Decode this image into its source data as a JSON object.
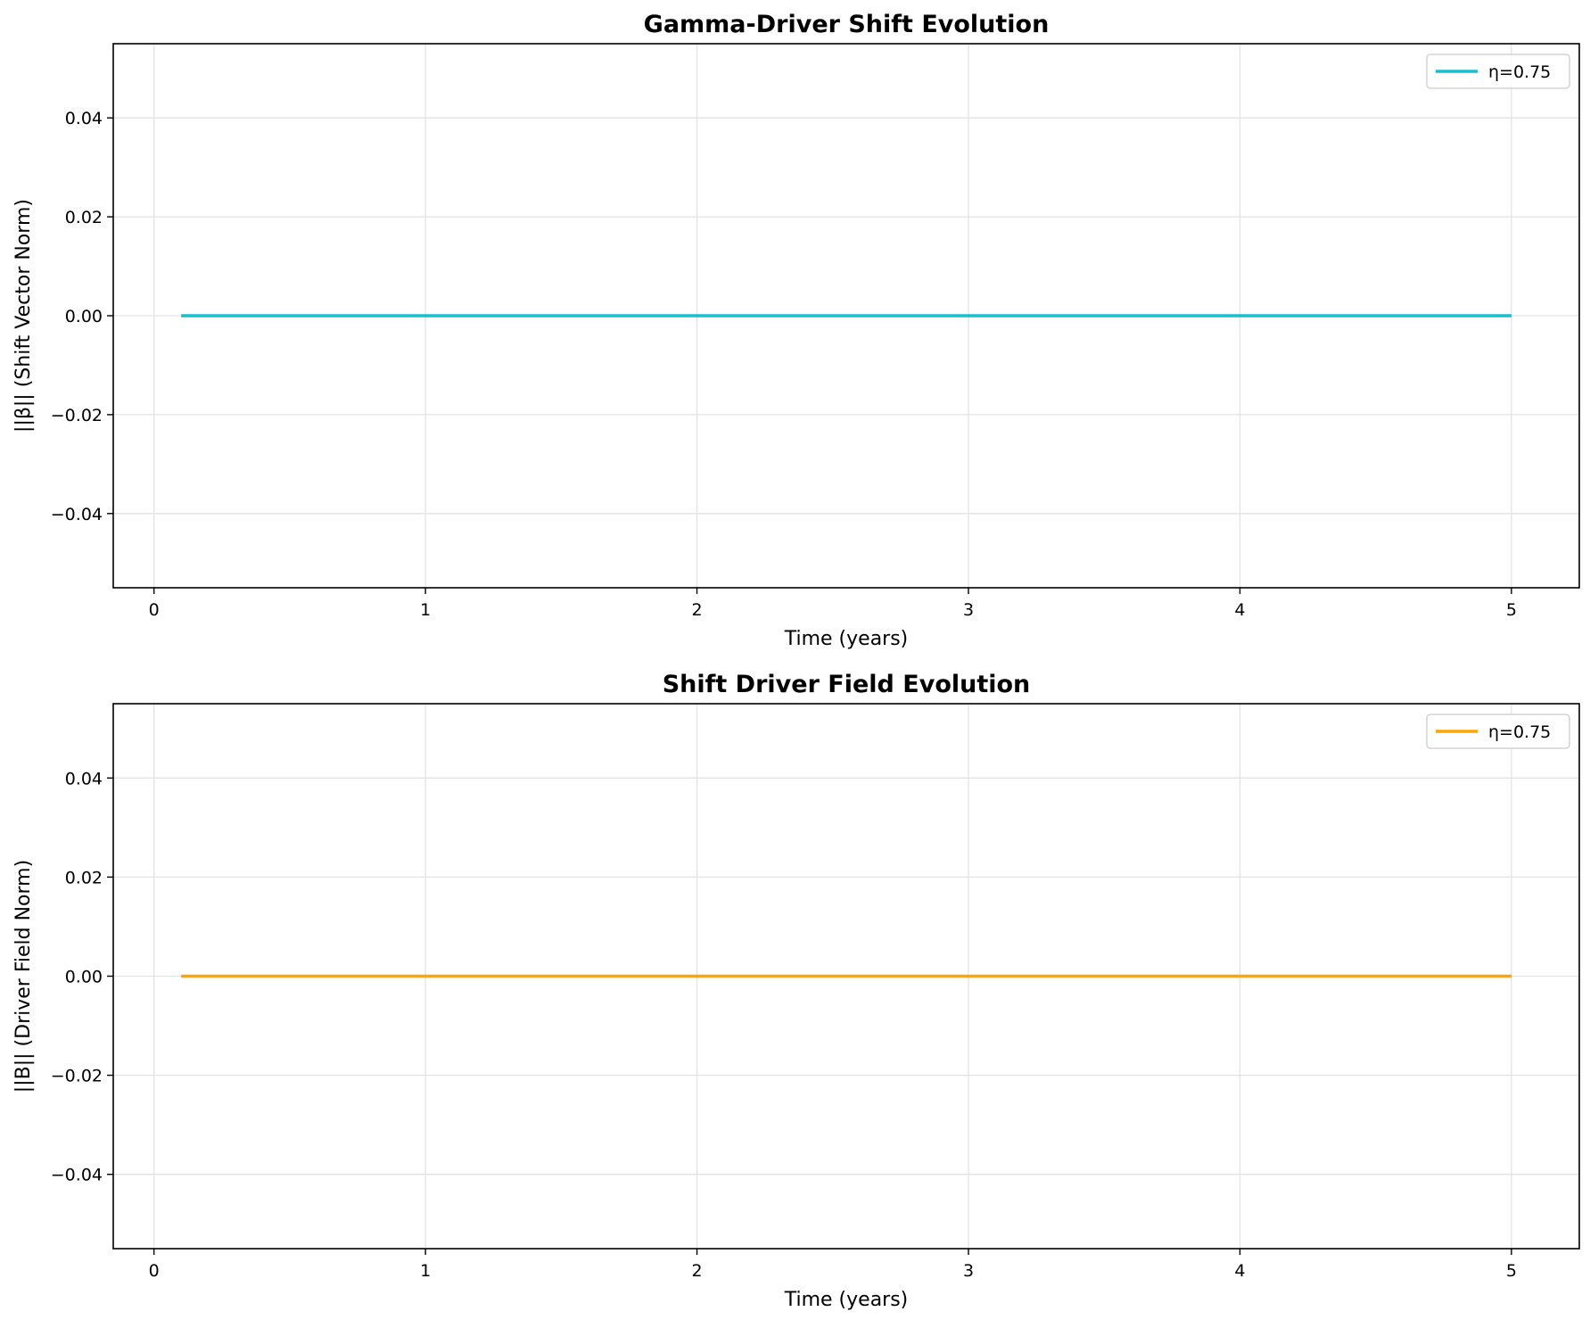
{
  "chart_data": [
    {
      "type": "line",
      "title": "Gamma-Driver Shift Evolution",
      "xlabel": "Time (years)",
      "ylabel": "||β|| (Shift Vector Norm)",
      "xlim": [
        -0.15,
        5.25
      ],
      "ylim": [
        -0.055,
        0.055
      ],
      "xticks": [
        0,
        1,
        2,
        3,
        4,
        5
      ],
      "xtick_labels": [
        "0",
        "1",
        "2",
        "3",
        "4",
        "5"
      ],
      "yticks": [
        0.04,
        0.02,
        0.0,
        -0.02,
        -0.04
      ],
      "ytick_labels": [
        "0.04",
        "0.02",
        "0.00",
        "−0.02",
        "−0.04"
      ],
      "grid": true,
      "legend_position": "top-right",
      "series": [
        {
          "name": "η=0.75",
          "color": "#17becf",
          "x": [
            0.1,
            5.0
          ],
          "y": [
            0.0,
            0.0
          ]
        }
      ]
    },
    {
      "type": "line",
      "title": "Shift Driver Field Evolution",
      "xlabel": "Time (years)",
      "ylabel": "||B|| (Driver Field Norm)",
      "xlim": [
        -0.15,
        5.25
      ],
      "ylim": [
        -0.055,
        0.055
      ],
      "xticks": [
        0,
        1,
        2,
        3,
        4,
        5
      ],
      "xtick_labels": [
        "0",
        "1",
        "2",
        "3",
        "4",
        "5"
      ],
      "yticks": [
        0.04,
        0.02,
        0.0,
        -0.02,
        -0.04
      ],
      "ytick_labels": [
        "0.04",
        "0.02",
        "0.00",
        "−0.02",
        "−0.04"
      ],
      "grid": true,
      "legend_position": "top-right",
      "series": [
        {
          "name": "η=0.75",
          "color": "#ffa500",
          "x": [
            0.1,
            5.0
          ],
          "y": [
            0.0,
            0.0
          ]
        }
      ]
    }
  ]
}
